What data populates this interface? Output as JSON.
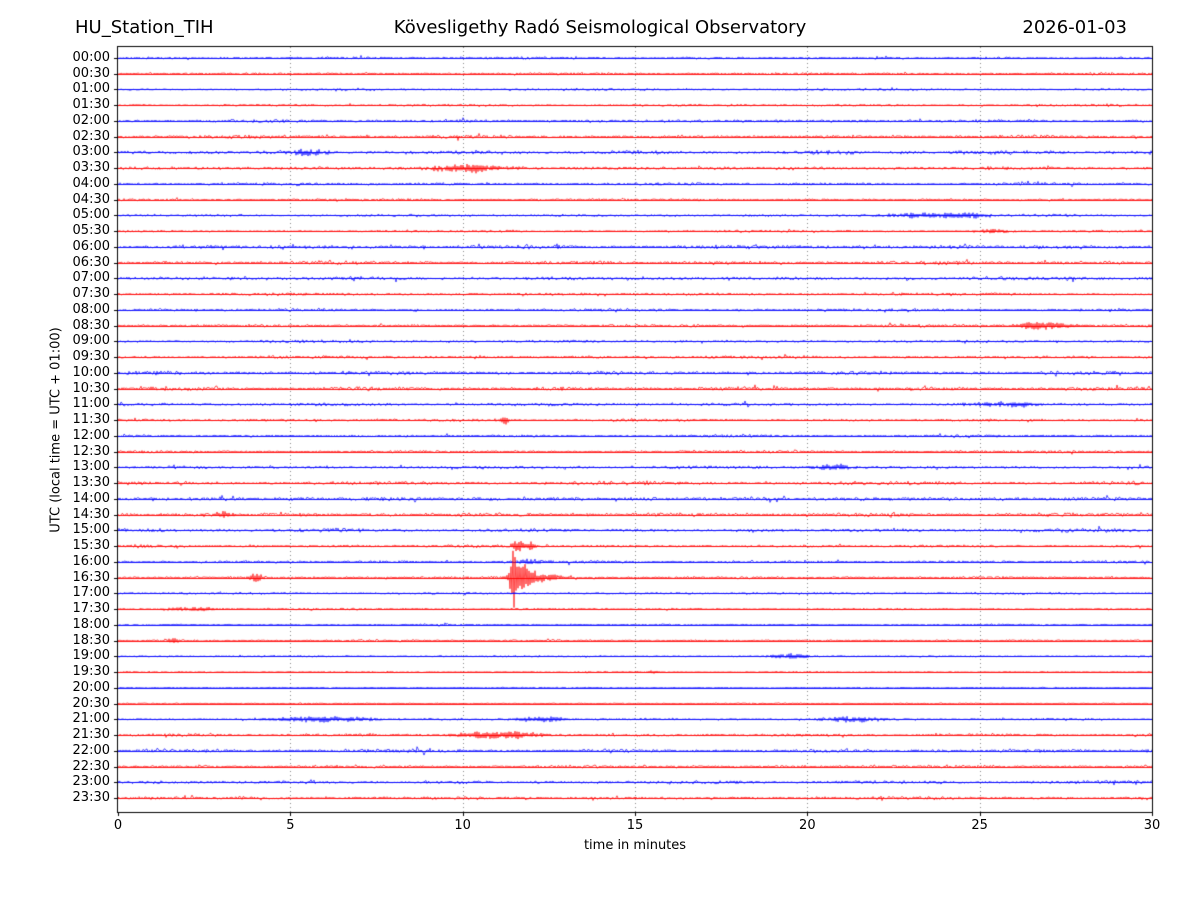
{
  "header": {
    "station": "HU_Station_TIH",
    "observatory": "Kövesligethy Radó Seismological Observatory",
    "date": "2026-01-03"
  },
  "axes": {
    "xlabel": "time in minutes",
    "ylabel": "UTC (local time = UTC + 01:00)",
    "x_ticks": [
      0,
      5,
      10,
      15,
      20,
      25,
      30
    ],
    "x_range": [
      0,
      30
    ],
    "grid_minutes": [
      5,
      10,
      15,
      20,
      25
    ],
    "grid_style": "dotted",
    "frame_color": "#000000",
    "grid_color": "#888888"
  },
  "chart_data": {
    "type": "line",
    "subtype": "helicorder-day-plot",
    "title": "Kövesligethy Radó Seismological Observatory",
    "xlabel": "time in minutes",
    "ylabel": "UTC (local time = UTC + 01:00)",
    "x_range": [
      0,
      30
    ],
    "minutes_per_row": 30,
    "rows": 48,
    "colors": {
      "even_row": "#0000ff",
      "odd_row": "#ff0000"
    },
    "traces": [
      {
        "label": "00:00",
        "color": "#0000ff",
        "noise_amp": 1.6,
        "events": []
      },
      {
        "label": "00:30",
        "color": "#ff0000",
        "noise_amp": 1.7,
        "events": []
      },
      {
        "label": "01:00",
        "color": "#0000ff",
        "noise_amp": 1.4,
        "events": []
      },
      {
        "label": "01:30",
        "color": "#ff0000",
        "noise_amp": 1.5,
        "events": []
      },
      {
        "label": "02:00",
        "color": "#0000ff",
        "noise_amp": 2.2,
        "events": []
      },
      {
        "label": "02:30",
        "color": "#ff0000",
        "noise_amp": 2.4,
        "events": []
      },
      {
        "label": "03:00",
        "color": "#0000ff",
        "noise_amp": 2.6,
        "events": [
          {
            "t": 5.5,
            "a": 3.0,
            "w": 0.4
          }
        ]
      },
      {
        "label": "03:30",
        "color": "#ff0000",
        "noise_amp": 2.4,
        "events": [
          {
            "t": 10.2,
            "a": 4.0,
            "w": 0.8
          }
        ]
      },
      {
        "label": "04:00",
        "color": "#0000ff",
        "noise_amp": 1.9,
        "events": []
      },
      {
        "label": "04:30",
        "color": "#ff0000",
        "noise_amp": 1.5,
        "events": []
      },
      {
        "label": "05:00",
        "color": "#0000ff",
        "noise_amp": 1.7,
        "events": [
          {
            "t": 23.2,
            "a": 2.5,
            "w": 0.8
          },
          {
            "t": 24.6,
            "a": 2.5,
            "w": 0.5
          }
        ]
      },
      {
        "label": "05:30",
        "color": "#ff0000",
        "noise_amp": 1.4,
        "events": [
          {
            "t": 25.4,
            "a": 2.2,
            "w": 0.4
          }
        ]
      },
      {
        "label": "06:00",
        "color": "#0000ff",
        "noise_amp": 2.7,
        "events": []
      },
      {
        "label": "06:30",
        "color": "#ff0000",
        "noise_amp": 2.5,
        "events": []
      },
      {
        "label": "07:00",
        "color": "#0000ff",
        "noise_amp": 2.5,
        "events": []
      },
      {
        "label": "07:30",
        "color": "#ff0000",
        "noise_amp": 1.9,
        "events": []
      },
      {
        "label": "08:00",
        "color": "#0000ff",
        "noise_amp": 1.8,
        "events": []
      },
      {
        "label": "08:30",
        "color": "#ff0000",
        "noise_amp": 2.0,
        "events": [
          {
            "t": 26.8,
            "a": 4.0,
            "w": 0.6
          }
        ]
      },
      {
        "label": "09:00",
        "color": "#0000ff",
        "noise_amp": 1.8,
        "events": []
      },
      {
        "label": "09:30",
        "color": "#ff0000",
        "noise_amp": 1.9,
        "events": []
      },
      {
        "label": "10:00",
        "color": "#0000ff",
        "noise_amp": 2.7,
        "events": []
      },
      {
        "label": "10:30",
        "color": "#ff0000",
        "noise_amp": 2.3,
        "events": []
      },
      {
        "label": "11:00",
        "color": "#0000ff",
        "noise_amp": 2.1,
        "events": [
          {
            "t": 25.8,
            "a": 3.0,
            "w": 0.6
          }
        ]
      },
      {
        "label": "11:30",
        "color": "#ff0000",
        "noise_amp": 1.8,
        "events": [
          {
            "t": 11.2,
            "a": 3.5,
            "w": 0.15
          }
        ]
      },
      {
        "label": "12:00",
        "color": "#0000ff",
        "noise_amp": 1.7,
        "events": []
      },
      {
        "label": "12:30",
        "color": "#ff0000",
        "noise_amp": 1.7,
        "events": []
      },
      {
        "label": "13:00",
        "color": "#0000ff",
        "noise_amp": 2.1,
        "events": [
          {
            "t": 20.8,
            "a": 3.0,
            "w": 0.5
          }
        ]
      },
      {
        "label": "13:30",
        "color": "#ff0000",
        "noise_amp": 2.3,
        "events": []
      },
      {
        "label": "14:00",
        "color": "#0000ff",
        "noise_amp": 2.9,
        "events": []
      },
      {
        "label": "14:30",
        "color": "#ff0000",
        "noise_amp": 2.5,
        "events": [
          {
            "t": 3.1,
            "a": 3.5,
            "w": 0.2
          }
        ]
      },
      {
        "label": "15:00",
        "color": "#0000ff",
        "noise_amp": 2.5,
        "events": []
      },
      {
        "label": "15:30",
        "color": "#ff0000",
        "noise_amp": 1.8,
        "events": [
          {
            "t": 11.6,
            "a": 6.0,
            "w": 0.12
          },
          {
            "t": 11.95,
            "a": 5.0,
            "w": 0.1
          }
        ]
      },
      {
        "label": "16:00",
        "color": "#0000ff",
        "noise_amp": 1.8,
        "events": [
          {
            "t": 12.0,
            "a": 2.5,
            "w": 0.3
          }
        ]
      },
      {
        "label": "16:30",
        "color": "#ff0000",
        "noise_amp": 1.8,
        "events": [
          {
            "t": 4.0,
            "a": 5.0,
            "w": 0.15
          },
          {
            "t": 11.45,
            "a": 32.0,
            "w": 0.06
          },
          {
            "t": 11.75,
            "a": 13.0,
            "w": 0.18
          },
          {
            "t": 12.2,
            "a": 4.0,
            "w": 0.5
          }
        ]
      },
      {
        "label": "17:00",
        "color": "#0000ff",
        "noise_amp": 1.5,
        "events": []
      },
      {
        "label": "17:30",
        "color": "#ff0000",
        "noise_amp": 1.2,
        "events": [
          {
            "t": 2.2,
            "a": 2.0,
            "w": 0.8
          }
        ]
      },
      {
        "label": "18:00",
        "color": "#0000ff",
        "noise_amp": 1.1,
        "events": []
      },
      {
        "label": "18:30",
        "color": "#ff0000",
        "noise_amp": 1.3,
        "events": [
          {
            "t": 1.6,
            "a": 3.0,
            "w": 0.12
          }
        ]
      },
      {
        "label": "19:00",
        "color": "#0000ff",
        "noise_amp": 1.1,
        "events": [
          {
            "t": 19.5,
            "a": 2.5,
            "w": 0.5
          }
        ]
      },
      {
        "label": "19:30",
        "color": "#ff0000",
        "noise_amp": 0.9,
        "events": [
          {
            "t": 15.5,
            "a": 1.8,
            "w": 0.15
          }
        ]
      },
      {
        "label": "20:00",
        "color": "#0000ff",
        "noise_amp": 0.9,
        "events": []
      },
      {
        "label": "20:30",
        "color": "#ff0000",
        "noise_amp": 0.9,
        "events": []
      },
      {
        "label": "21:00",
        "color": "#0000ff",
        "noise_amp": 1.3,
        "events": [
          {
            "t": 6.0,
            "a": 3.0,
            "w": 1.2
          },
          {
            "t": 12.3,
            "a": 3.0,
            "w": 0.6
          },
          {
            "t": 21.3,
            "a": 2.8,
            "w": 0.7
          }
        ]
      },
      {
        "label": "21:30",
        "color": "#ff0000",
        "noise_amp": 1.9,
        "events": [
          {
            "t": 11.0,
            "a": 4.0,
            "w": 0.9
          }
        ]
      },
      {
        "label": "22:00",
        "color": "#0000ff",
        "noise_amp": 2.4,
        "events": []
      },
      {
        "label": "22:30",
        "color": "#ff0000",
        "noise_amp": 2.1,
        "events": []
      },
      {
        "label": "23:00",
        "color": "#0000ff",
        "noise_amp": 2.2,
        "events": []
      },
      {
        "label": "23:30",
        "color": "#ff0000",
        "noise_amp": 2.1,
        "events": []
      }
    ]
  }
}
